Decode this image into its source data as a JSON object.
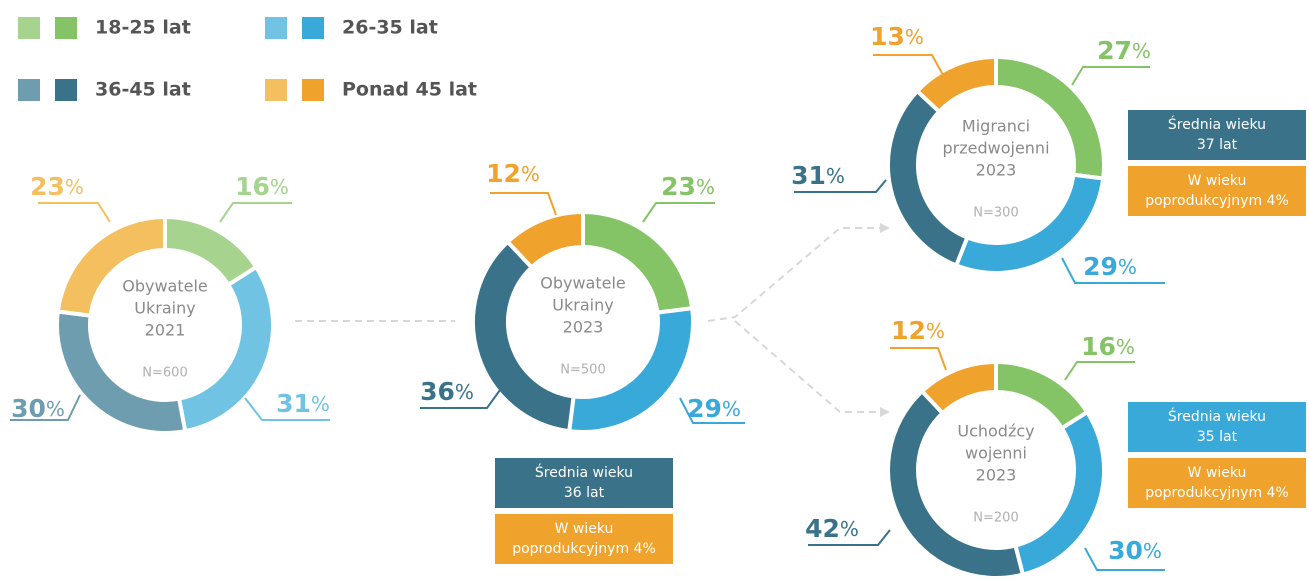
{
  "legend": {
    "items": [
      "18-25 lat",
      "26-35 lat",
      "36-45 lat",
      "Ponad 45 lat"
    ],
    "colors_light": [
      "#a6d48f",
      "#70c3e3",
      "#6f9db0",
      "#f3bf5f"
    ],
    "colors_dark": [
      "#84c366",
      "#38a9d8",
      "#3a7389",
      "#efa22c"
    ]
  },
  "chart_data": [
    {
      "type": "pie",
      "title": [
        "Obywatele",
        "Ukrainy",
        "2021"
      ],
      "n_label": "N=600",
      "unit": "%",
      "values": [
        16,
        31,
        30,
        23
      ],
      "colors": [
        "#a6d48f",
        "#70c3e3",
        "#6f9db0",
        "#f3bf5f"
      ]
    },
    {
      "type": "pie",
      "title": [
        "Obywatele",
        "Ukrainy",
        "2023"
      ],
      "n_label": "N=500",
      "unit": "%",
      "values": [
        23,
        29,
        36,
        12
      ],
      "colors": [
        "#84c366",
        "#38a9d8",
        "#3a7389",
        "#efa22c"
      ],
      "notes": [
        {
          "lines": [
            "Średnia wieku",
            "36 lat"
          ],
          "color": "#3a7389"
        },
        {
          "lines": [
            "W wieku",
            "poprodukcyjnym 4%"
          ],
          "color": "#efa22c"
        }
      ]
    },
    {
      "type": "pie",
      "title": [
        "Migranci",
        "przedwojenni",
        "2023"
      ],
      "n_label": "N=300",
      "unit": "%",
      "values": [
        27,
        29,
        31,
        13
      ],
      "colors": [
        "#84c366",
        "#38a9d8",
        "#3a7389",
        "#efa22c"
      ],
      "notes": [
        {
          "lines": [
            "Średnia wieku",
            "37 lat"
          ],
          "color": "#3a7389"
        },
        {
          "lines": [
            "W wieku",
            "poprodukcyjnym 4%"
          ],
          "color": "#efa22c"
        }
      ]
    },
    {
      "type": "pie",
      "title": [
        "Uchodźcy",
        "wojenni",
        "2023"
      ],
      "n_label": "N=200",
      "unit": "%",
      "values": [
        16,
        30,
        42,
        12
      ],
      "colors": [
        "#84c366",
        "#38a9d8",
        "#3a7389",
        "#efa22c"
      ],
      "notes": [
        {
          "lines": [
            "Średnia wieku",
            "35 lat"
          ],
          "color": "#38a9d8"
        },
        {
          "lines": [
            "W wieku",
            "poprodukcyjnym 4%"
          ],
          "color": "#efa22c"
        }
      ]
    }
  ]
}
